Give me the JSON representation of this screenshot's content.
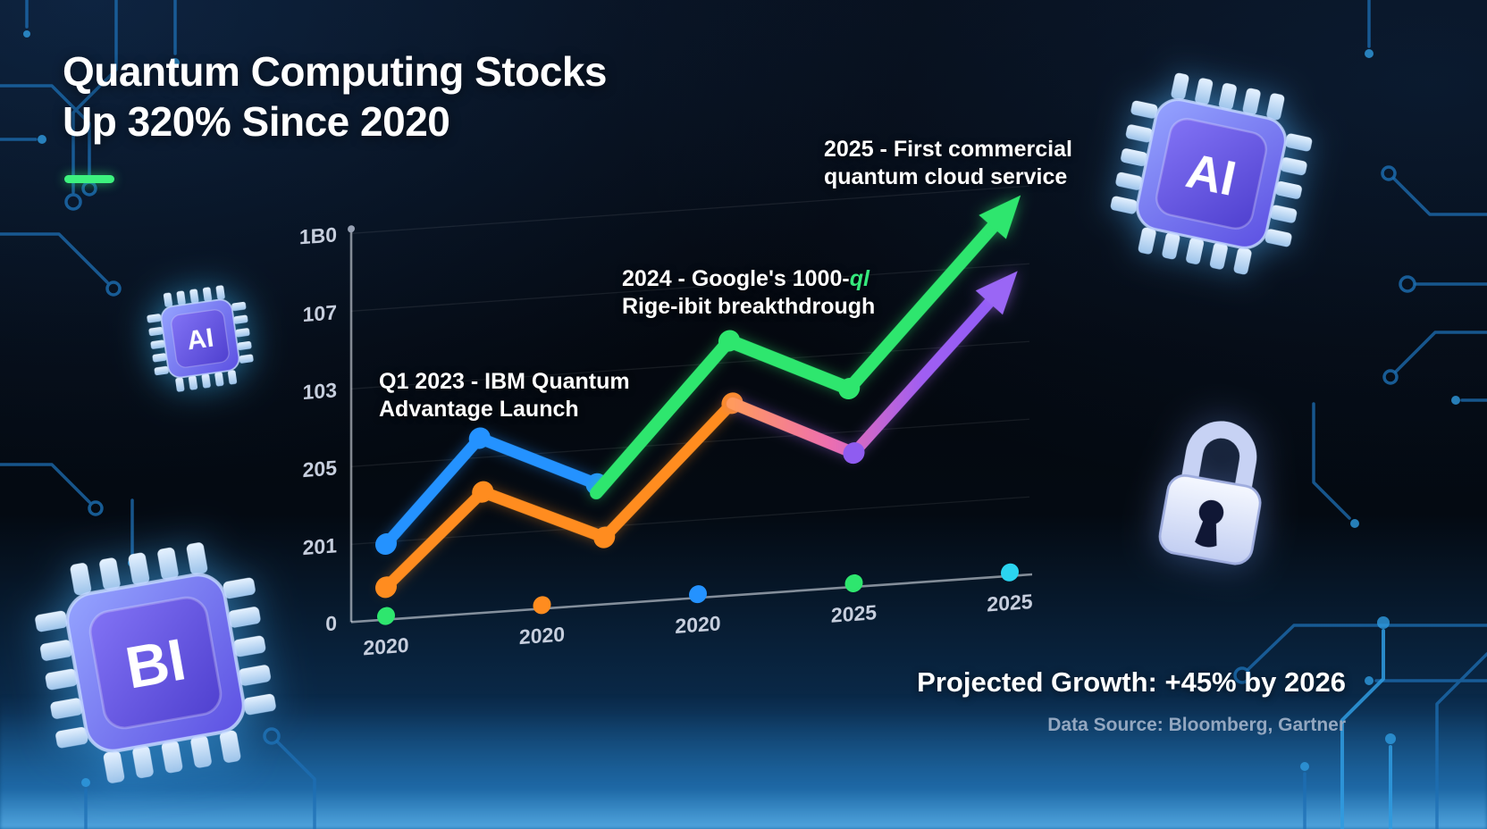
{
  "title": {
    "line1": "Quantum Computing Stocks",
    "line2": "Up 320% Since 2020"
  },
  "colors": {
    "accent_green": "#3df27e",
    "line_blue": "#2492ff",
    "line_orange": "#ff8c1f",
    "line_green": "#2ee66e",
    "line_purple": "#8f5cf0",
    "axis_cyan_dot": "#2bd4f0"
  },
  "annotations": [
    {
      "line1": "2025 - First commercial",
      "line2": "quantum cloud service"
    },
    {
      "line1": "2024 - Google's 1000-",
      "suffix": "ql",
      "line2": "Rige-ibit breakthdrough"
    },
    {
      "line1": "Q1 2023 - IBM Quantum",
      "line2": "Advantage Launch"
    }
  ],
  "footer": {
    "projection": "Projected Growth: +45% by 2026",
    "source": "Data Source: Bloomberg, Gartner"
  },
  "chips": [
    {
      "label": "AI"
    },
    {
      "label": "AI"
    },
    {
      "label": "BI"
    }
  ],
  "chart_data": {
    "type": "line",
    "title": "Quantum Computing Stocks Up 320% Since 2020",
    "xlabel": "",
    "ylabel": "",
    "ylim": [
      0,
      180
    ],
    "grid": true,
    "x_ticks": [
      "2020",
      "2020",
      "2020",
      "2025",
      "2025"
    ],
    "y_ticks": [
      {
        "v": 180,
        "label": "1B0"
      },
      {
        "v": 144,
        "label": "107"
      },
      {
        "v": 108,
        "label": "103"
      },
      {
        "v": 72,
        "label": "205"
      },
      {
        "v": 36,
        "label": "201"
      },
      {
        "v": 0,
        "label": "0"
      }
    ],
    "series": [
      {
        "name": "blue",
        "color": "#2492ff",
        "width": 13,
        "points": [
          [
            0,
            35
          ],
          [
            0.6,
            81
          ],
          [
            1.35,
            56
          ]
        ],
        "dots": [
          0,
          1,
          2
        ]
      },
      {
        "name": "orange",
        "color": "#ff8c1f",
        "width": 13,
        "points": [
          [
            0,
            15
          ],
          [
            0.62,
            56
          ],
          [
            1.4,
            31
          ],
          [
            2.22,
            89
          ]
        ],
        "dots": [
          0,
          1,
          2,
          3
        ]
      },
      {
        "name": "purple",
        "color": "#8f5cf0",
        "glow": "#a86cf5",
        "arrow_color": "#9a66f5",
        "dot_color": "#8f5cf0",
        "gradient": [
          "#ff9a5e",
          "#ee6fae",
          "#a05ef2",
          "#8b5cf6"
        ],
        "width": 13,
        "points": [
          [
            2.22,
            89
          ],
          [
            3.0,
            62
          ],
          [
            4.05,
            141
          ]
        ],
        "dots": [
          1
        ],
        "arrow": true
      },
      {
        "name": "green",
        "color": "#2ee66e",
        "width": 15,
        "points": [
          [
            1.35,
            52
          ],
          [
            2.2,
            118
          ],
          [
            2.97,
            92
          ],
          [
            4.07,
            176
          ]
        ],
        "dots": [
          1,
          2
        ],
        "arrow": true
      }
    ],
    "axis_markers": [
      {
        "t": 0,
        "color": "#2ee66e"
      },
      {
        "t": 1,
        "color": "#ff8c1f"
      },
      {
        "t": 2,
        "color": "#2492ff"
      },
      {
        "t": 3,
        "color": "#2ee66e"
      },
      {
        "t": 4,
        "color": "#2bd4f0"
      }
    ]
  }
}
